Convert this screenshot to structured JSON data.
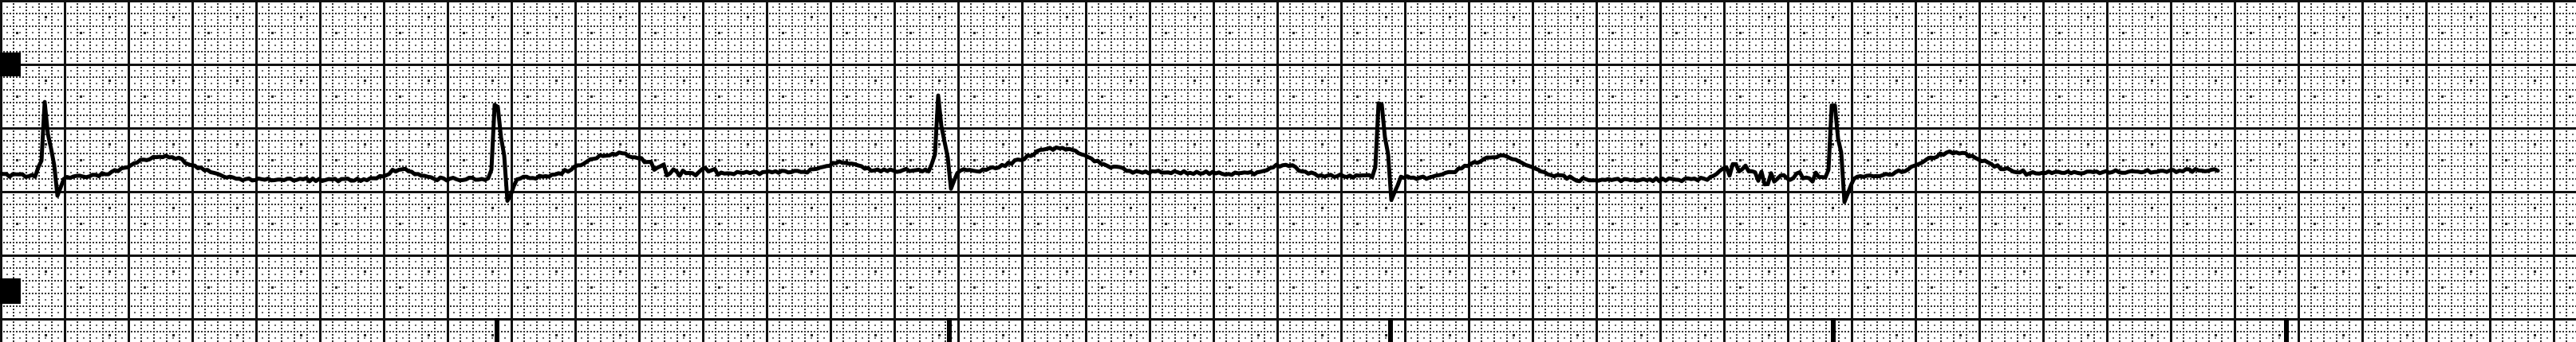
{
  "image": {
    "kind": "ecg-rhythm-strip",
    "grid_color": "#1a1a1a",
    "trace_color": "#000000",
    "paper_color": "#ffffff",
    "beat_count": 5
  }
}
